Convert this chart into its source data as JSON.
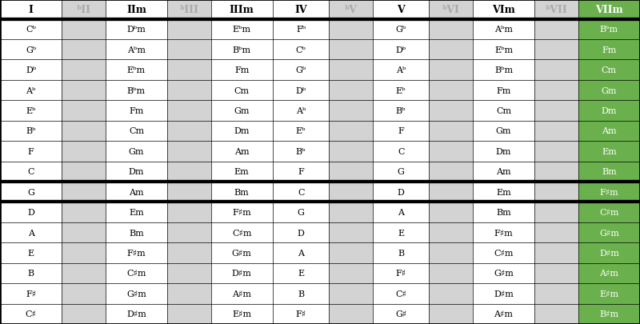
{
  "headers": [
    "I",
    "ᵇII",
    "IIm",
    "ᵇIII",
    "IIIm",
    "IV",
    "ᵇV",
    "V",
    "ᵇVI",
    "VIm",
    "ᵇVII",
    "VIIm"
  ],
  "rows": [
    [
      "Cᵇ",
      "",
      "Dᵇm",
      "",
      "Eᵇm",
      "Fᵇ",
      "",
      "Gᵇ",
      "",
      "Aᵇm",
      "",
      "Bᵇm"
    ],
    [
      "Gᵇ",
      "",
      "Aᵇm",
      "",
      "Bᵇm",
      "Cᵇ",
      "",
      "Dᵇ",
      "",
      "Eᵇm",
      "",
      "Fm"
    ],
    [
      "Dᵇ",
      "",
      "Eᵇm",
      "",
      "Fm",
      "Gᵇ",
      "",
      "Aᵇ",
      "",
      "Bᵇm",
      "",
      "Cm"
    ],
    [
      "Aᵇ",
      "",
      "Bᵇm",
      "",
      "Cm",
      "Dᵇ",
      "",
      "Eᵇ",
      "",
      "Fm",
      "",
      "Gm"
    ],
    [
      "Eᵇ",
      "",
      "Fm",
      "",
      "Gm",
      "Aᵇ",
      "",
      "Bᵇ",
      "",
      "Cm",
      "",
      "Dm"
    ],
    [
      "Bᵇ",
      "",
      "Cm",
      "",
      "Dm",
      "Eᵇ",
      "",
      "F",
      "",
      "Gm",
      "",
      "Am"
    ],
    [
      "F",
      "",
      "Gm",
      "",
      "Am",
      "Bᵇ",
      "",
      "C",
      "",
      "Dm",
      "",
      "Em"
    ],
    [
      "C",
      "",
      "Dm",
      "",
      "Em",
      "F",
      "",
      "G",
      "",
      "Am",
      "",
      "Bm"
    ],
    [
      "G",
      "",
      "Am",
      "",
      "Bm",
      "C",
      "",
      "D",
      "",
      "Em",
      "",
      "F♯m"
    ],
    [
      "D",
      "",
      "Em",
      "",
      "F♯m",
      "G",
      "",
      "A",
      "",
      "Bm",
      "",
      "C♯m"
    ],
    [
      "A",
      "",
      "Bm",
      "",
      "C♯m",
      "D",
      "",
      "E",
      "",
      "F♯m",
      "",
      "G♯m"
    ],
    [
      "E",
      "",
      "F♯m",
      "",
      "G♯m",
      "A",
      "",
      "B",
      "",
      "C♯m",
      "",
      "D♯m"
    ],
    [
      "B",
      "",
      "C♯m",
      "",
      "D♯m",
      "E",
      "",
      "F♯",
      "",
      "G♯m",
      "",
      "A♯m"
    ],
    [
      "F♯",
      "",
      "G♯m",
      "",
      "A♯m",
      "B",
      "",
      "C♯",
      "",
      "D♯m",
      "",
      "E♯m"
    ],
    [
      "C♯",
      "",
      "D♯m",
      "",
      "E♯m",
      "F♯",
      "",
      "G♯",
      "",
      "A♯m",
      "",
      "B♯m"
    ]
  ],
  "col_widths_raw": [
    68,
    48,
    68,
    48,
    68,
    62,
    48,
    62,
    48,
    68,
    48,
    68
  ],
  "dimmed_cols": [
    1,
    3,
    6,
    8,
    10
  ],
  "green_col": 11,
  "white_col_bg": "#ffffff",
  "dimmed_col_bg": "#d3d3d3",
  "green_col_bg": "#6ab04c",
  "header_text_dimmed": "#aaaaaa",
  "header_text_normal": "#000000",
  "header_text_green": "#ffffff",
  "cell_text_normal": "#000000",
  "cell_text_green": "#ffffff",
  "thick_border_lw": 3.0,
  "thin_border_lw": 0.5,
  "outer_border_lw": 2.0,
  "thick_after_header": true,
  "thick_rows": [
    7,
    8
  ],
  "figsize": [
    8.0,
    4.06
  ],
  "dpi": 100,
  "header_fontsize": 9,
  "cell_fontsize": 8
}
